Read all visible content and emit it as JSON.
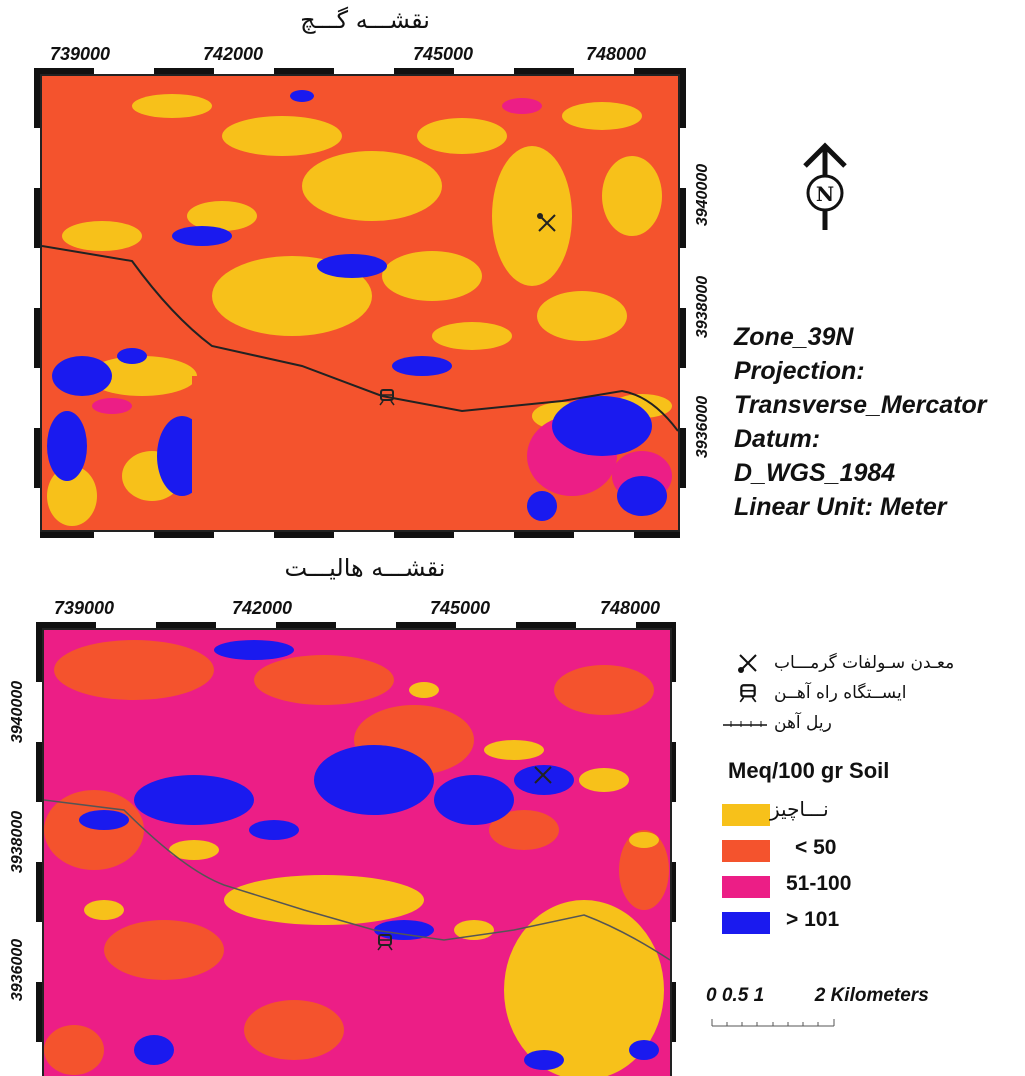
{
  "maps": [
    {
      "title": "نقشـــه گـــچ",
      "x_ticks": [
        "739000",
        "742000",
        "745000",
        "748000"
      ],
      "y_ticks": [
        "3940000",
        "3938000",
        "3936000"
      ]
    },
    {
      "title": "نقشـــه هالیـــت",
      "x_ticks": [
        "739000",
        "742000",
        "745000",
        "748000"
      ],
      "y_ticks": [
        "3940000",
        "3938000",
        "3936000"
      ]
    }
  ],
  "north_arrow": {
    "letter": "N",
    "icon": "north-arrow-icon"
  },
  "projection_info": [
    "Zone_39N",
    "Projection:",
    "Transverse_Mercator",
    "Datum:",
    "D_WGS_1984",
    "Linear Unit: Meter"
  ],
  "legend": {
    "features": [
      {
        "label": "معـدن سـولفات گرمـــاب",
        "icon": "mine-icon"
      },
      {
        "label": "ایســتگاه راه آهــن",
        "icon": "train-station-icon"
      },
      {
        "label": "ریل آهن",
        "icon": "railway-line-icon"
      }
    ],
    "units": "Meq/100 gr Soil",
    "classes": [
      {
        "label": "نـــاچیز",
        "color": "#f7c11a"
      },
      {
        "label": "< 50",
        "color": "#f4532d"
      },
      {
        "label": "51-100",
        "color": "#ec1e86"
      },
      {
        "label": "> 101",
        "color": "#1a1aef"
      }
    ]
  },
  "scale_bar": {
    "labels": [
      "0",
      "0.5",
      "1",
      "2"
    ],
    "unit": "Kilometers"
  }
}
